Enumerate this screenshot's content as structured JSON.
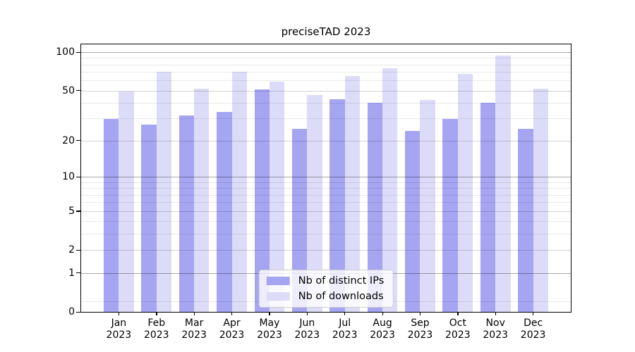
{
  "title": "preciseTAD 2023",
  "chart_data": {
    "type": "bar",
    "title": "preciseTAD 2023",
    "categories": [
      "Jan",
      "Feb",
      "Mar",
      "Apr",
      "May",
      "Jun",
      "Jul",
      "Aug",
      "Sep",
      "Oct",
      "Nov",
      "Dec"
    ],
    "category_year": "2023",
    "series": [
      {
        "name": "Nb of distinct IPs",
        "color": "#a5a5f2",
        "values": [
          30,
          27,
          32,
          34,
          51,
          25,
          43,
          40,
          24,
          30,
          40,
          25
        ]
      },
      {
        "name": "Nb of downloads",
        "color": "#dcdcf8",
        "values": [
          49,
          70,
          52,
          70,
          59,
          46,
          65,
          75,
          42,
          68,
          94,
          52
        ]
      }
    ],
    "xlabel": "",
    "ylabel": "",
    "yscale": "log1p",
    "ylim": [
      0,
      115
    ],
    "yticks": [
      0,
      1,
      2,
      5,
      10,
      20,
      50,
      100
    ],
    "yticks_decade": [
      1,
      10,
      100
    ],
    "yticks_minor": [
      0.2,
      3,
      4,
      6,
      7,
      8,
      9,
      30,
      40,
      60,
      70,
      80,
      90
    ],
    "grid": "horizontal",
    "legend_position": "lower center"
  },
  "legend": {
    "items": [
      {
        "label": "Nb of distinct IPs"
      },
      {
        "label": "Nb of downloads"
      }
    ]
  }
}
